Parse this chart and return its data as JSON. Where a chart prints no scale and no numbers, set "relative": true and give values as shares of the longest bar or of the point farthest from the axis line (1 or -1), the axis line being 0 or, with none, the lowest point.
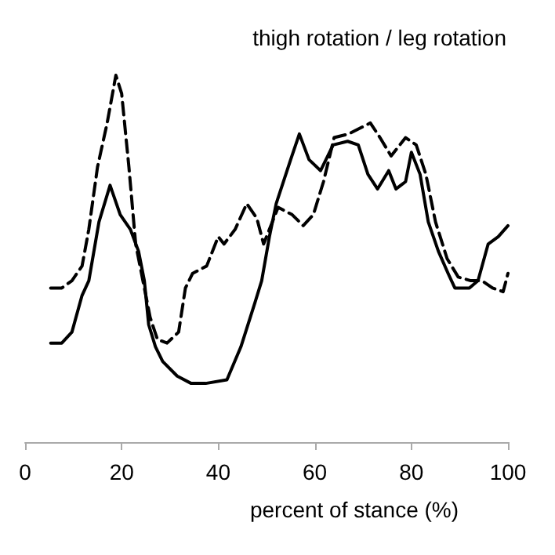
{
  "chart_data": {
    "type": "line",
    "title": "thigh rotation / leg rotation",
    "xlabel": "percent of stance (%)",
    "relative": true,
    "xlim": [
      0,
      100
    ],
    "xticks": [
      0,
      20,
      40,
      60,
      80,
      100
    ],
    "grid": false,
    "marker": "none",
    "series": [
      {
        "color": "#000000",
        "line_style": "solid",
        "x": [
          5.3,
          7.6,
          9.7,
          11.8,
          13.2,
          15.3,
          17.6,
          19.7,
          21.8,
          23.5,
          24.7,
          25.6,
          27,
          28.5,
          31.5,
          34.4,
          37.4,
          41.8,
          44.7,
          47.6,
          49,
          50.6,
          52,
          55,
          56.8,
          58.8,
          61.2,
          63.8,
          66.8,
          69,
          71,
          73,
          75.3,
          76.8,
          78.8,
          80,
          81.8,
          83.5,
          85.6,
          87.6,
          89,
          92,
          93.8,
          95.9,
          98,
          100
        ],
        "values": [
          0.27,
          0.27,
          0.3,
          0.4,
          0.44,
          0.6,
          0.7,
          0.62,
          0.58,
          0.52,
          0.44,
          0.32,
          0.26,
          0.22,
          0.18,
          0.16,
          0.16,
          0.17,
          0.26,
          0.38,
          0.44,
          0.56,
          0.65,
          0.77,
          0.84,
          0.77,
          0.74,
          0.81,
          0.82,
          0.81,
          0.73,
          0.69,
          0.74,
          0.69,
          0.71,
          0.79,
          0.73,
          0.6,
          0.52,
          0.46,
          0.42,
          0.42,
          0.44,
          0.54,
          0.56,
          0.59
        ]
      },
      {
        "color": "#000000",
        "line_style": "dashed",
        "x": [
          5.3,
          7.6,
          9.7,
          11.8,
          13.2,
          15,
          17,
          18.8,
          20,
          21.5,
          22.9,
          24.4,
          25.9,
          27.4,
          29.4,
          31.8,
          33.2,
          34.7,
          37.6,
          40,
          41.2,
          43.5,
          45.9,
          48,
          49.4,
          52.4,
          55.3,
          57.6,
          59.7,
          61.8,
          64,
          67,
          71.5,
          73.5,
          75.8,
          77,
          78.8,
          81,
          83,
          85,
          87.4,
          89.7,
          92.3,
          94.6,
          96.8,
          99,
          100
        ],
        "values": [
          0.42,
          0.42,
          0.44,
          0.48,
          0.58,
          0.75,
          0.87,
          1,
          0.95,
          0.75,
          0.54,
          0.44,
          0.34,
          0.28,
          0.27,
          0.3,
          0.42,
          0.46,
          0.48,
          0.56,
          0.54,
          0.58,
          0.65,
          0.61,
          0.54,
          0.64,
          0.62,
          0.59,
          0.62,
          0.71,
          0.83,
          0.84,
          0.87,
          0.83,
          0.78,
          0.8,
          0.83,
          0.81,
          0.73,
          0.6,
          0.5,
          0.45,
          0.44,
          0.44,
          0.42,
          0.41,
          0.46
        ]
      }
    ]
  }
}
